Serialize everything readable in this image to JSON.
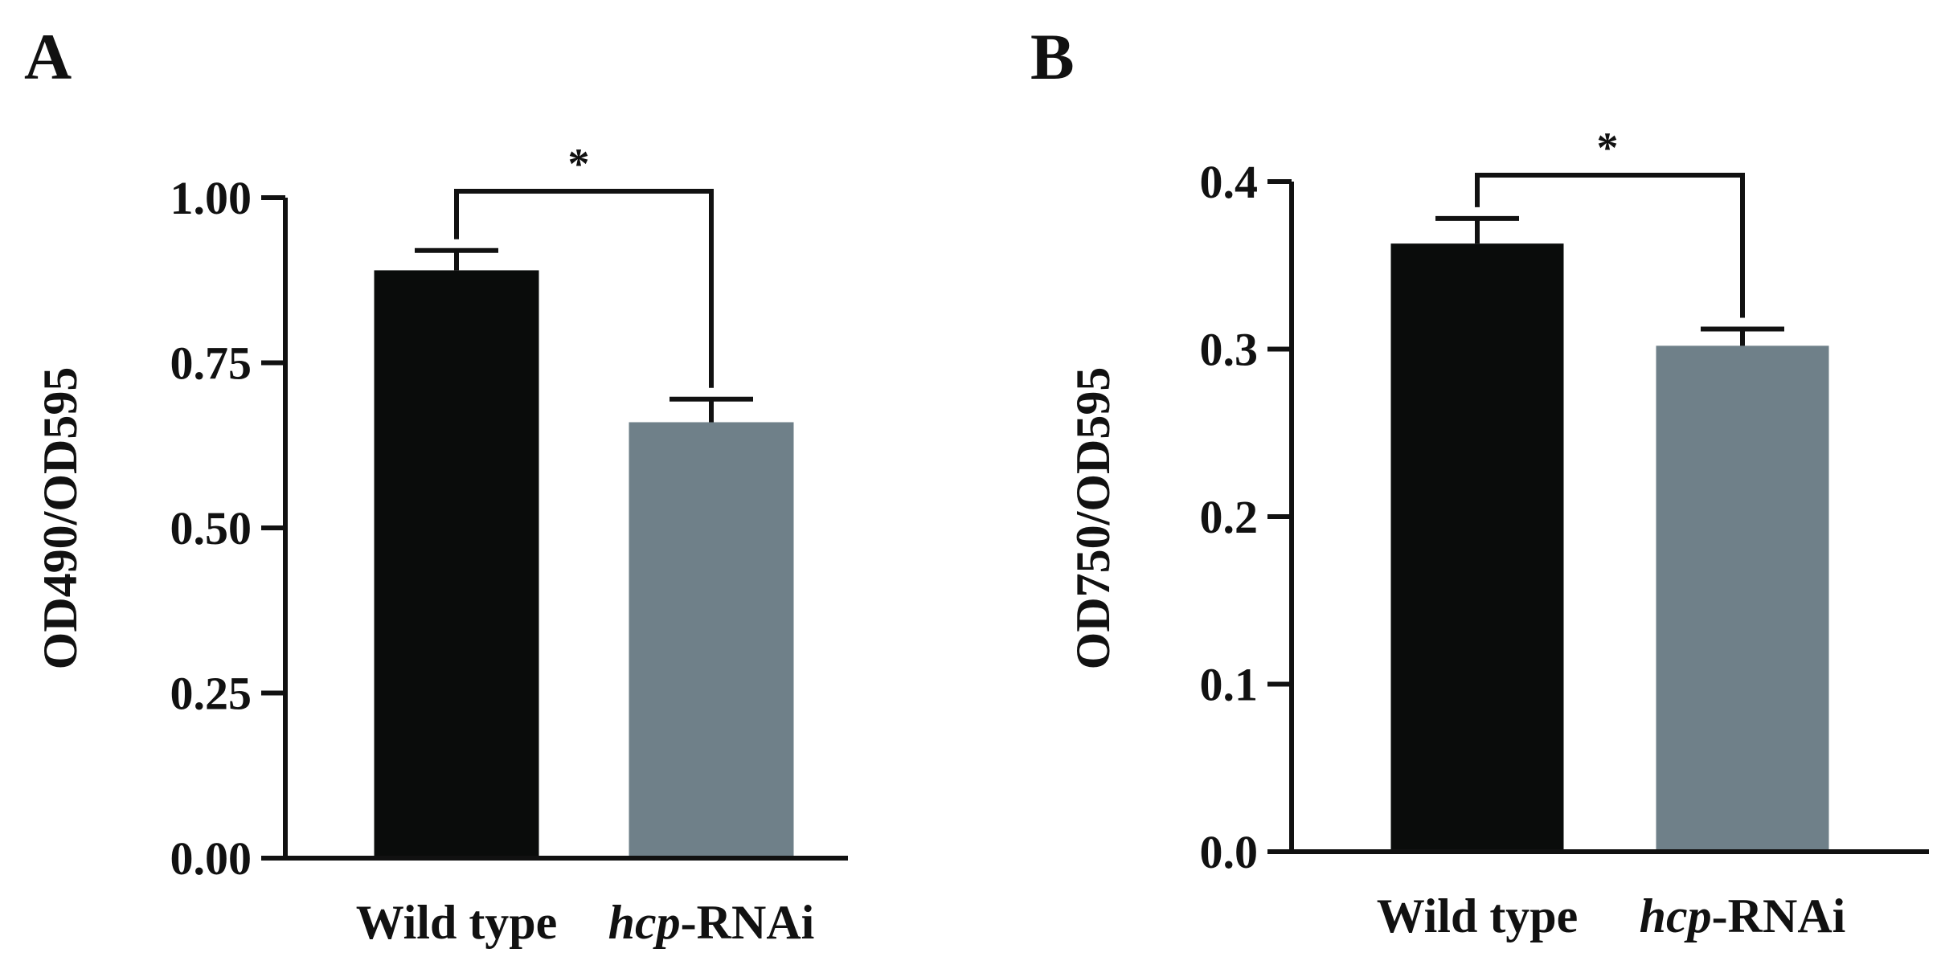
{
  "chart_data": [
    {
      "panel": "A",
      "type": "bar",
      "categories": [
        "Wild type",
        "hcp-RNAi"
      ],
      "category_parts": [
        {
          "italic": "",
          "plain": "Wild type"
        },
        {
          "italic": "hcp",
          "plain": "-RNAi"
        }
      ],
      "values": [
        0.89,
        0.66
      ],
      "errors": [
        0.03,
        0.035
      ],
      "colors": [
        "#0a0c0b",
        "#6f8089"
      ],
      "ylabel": "OD490/OD595",
      "xlabel": "",
      "ylim": [
        0,
        1.0
      ],
      "yticks": [
        "0.00",
        "0.25",
        "0.50",
        "0.75",
        "1.00"
      ],
      "significance": {
        "label": "*",
        "between": [
          0,
          1
        ]
      }
    },
    {
      "panel": "B",
      "type": "bar",
      "categories": [
        "Wild type",
        "hcp-RNAi"
      ],
      "category_parts": [
        {
          "italic": "",
          "plain": "Wild type"
        },
        {
          "italic": "hcp",
          "plain": "-RNAi"
        }
      ],
      "values": [
        0.363,
        0.302
      ],
      "errors": [
        0.015,
        0.01
      ],
      "colors": [
        "#0a0c0b",
        "#6f8089"
      ],
      "ylabel": "OD750/OD595",
      "xlabel": "",
      "ylim": [
        0,
        0.4
      ],
      "yticks": [
        "0.0",
        "0.1",
        "0.2",
        "0.3",
        "0.4"
      ],
      "significance": {
        "label": "*",
        "between": [
          0,
          1
        ]
      }
    }
  ]
}
